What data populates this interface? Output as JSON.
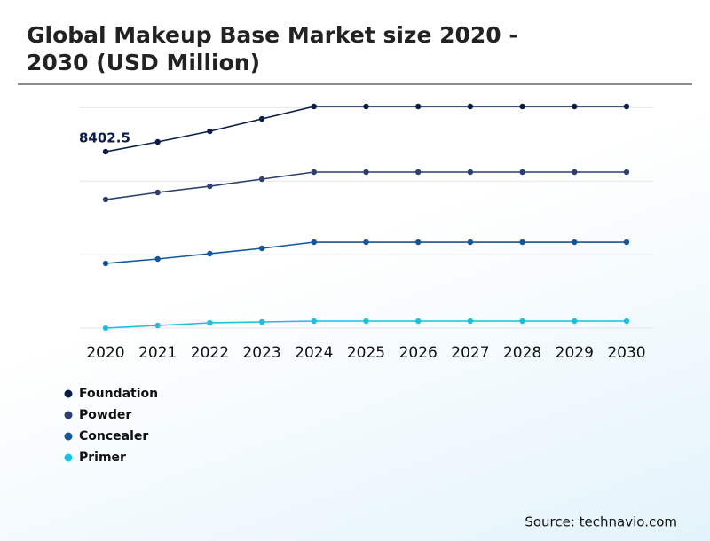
{
  "chart_data": {
    "type": "line",
    "title": "Global Makeup Base Market size 2020 - 2030 (USD Million)",
    "source": "Source: technavio.com",
    "categories": [
      "2020",
      "2021",
      "2022",
      "2023",
      "2024",
      "2025",
      "2026",
      "2027",
      "2028",
      "2029",
      "2030"
    ],
    "series": [
      {
        "name": "Foundation",
        "color": "#0b1d45",
        "values": [
          8402.5,
          8867,
          9373,
          9964,
          10556,
          10556,
          10556,
          10556,
          10556,
          10556,
          10556
        ]
      },
      {
        "name": "Powder",
        "color": "#2f3f6d",
        "values": [
          6122,
          6460,
          6755,
          7093,
          7431,
          7431,
          7431,
          7431,
          7431,
          7431,
          7431
        ]
      },
      {
        "name": "Concealer",
        "color": "#10579e",
        "values": [
          3082,
          3293,
          3547,
          3800,
          4095,
          4095,
          4095,
          4095,
          4095,
          4095,
          4095
        ]
      },
      {
        "name": "Primer",
        "color": "#1cbfdf",
        "values": [
          0,
          127,
          253,
          296,
          338,
          338,
          338,
          338,
          338,
          338,
          338
        ]
      }
    ],
    "ylim": [
      0,
      10556
    ],
    "yticks": [
      0,
      3500,
      7000,
      10500
    ],
    "y_tick_labels": false,
    "grid": true,
    "value_label_series": 0,
    "value_label_point": 0,
    "legend": "bottom-left"
  }
}
